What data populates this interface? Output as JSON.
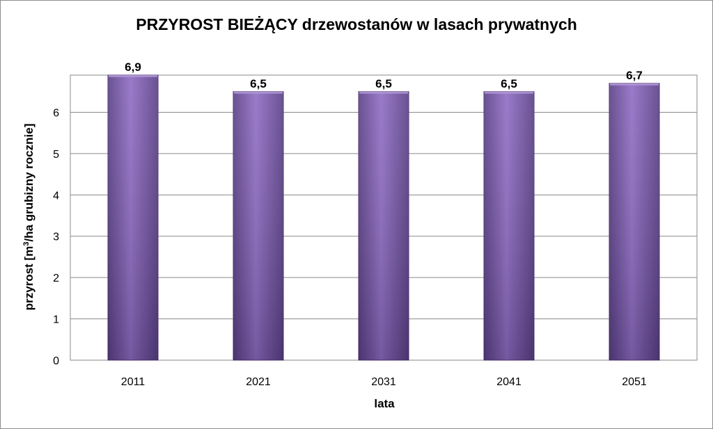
{
  "chart_data": {
    "type": "bar",
    "title": "PRZYROST BIEŻĄCY drzewostanów w lasach prywatnych",
    "xlabel": "lata",
    "ylabel_prefix": "przyrost [m",
    "ylabel_sup": "3",
    "ylabel_suffix": "/ha grubizny rocznie]",
    "categories": [
      "2011",
      "2021",
      "2031",
      "2041",
      "2051"
    ],
    "values": [
      6.9,
      6.5,
      6.5,
      6.5,
      6.7
    ],
    "data_labels": [
      "6,9",
      "6,5",
      "6,5",
      "6,5",
      "6,7"
    ],
    "ylim": [
      0,
      6.9
    ],
    "yticks": [
      0,
      1,
      2,
      3,
      4,
      5,
      6
    ],
    "grid": true,
    "legend": "none",
    "colors": {
      "bar_light": "#8f6cc4",
      "bar_dark": "#5a3f86",
      "bar_edge": "#4b336f",
      "grid": "#8a8a8a"
    }
  }
}
